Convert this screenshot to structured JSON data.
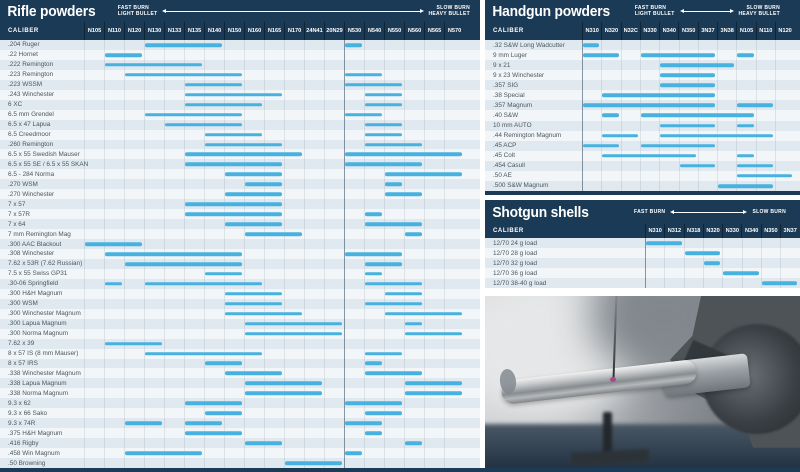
{
  "colors": {
    "navy": "#1b3a55",
    "bar": "#47b1e0",
    "row_light": "#f2f6f8",
    "row_dark": "#e0e9ef"
  },
  "chart_data": [
    {
      "type": "bar",
      "subtype": "horizontal-range",
      "title": "Rifle powders",
      "caliber_header": "CALIBER",
      "legend": {
        "fast_line1": "FAST BURN",
        "fast_line2": "LIGHT BULLET",
        "slow_line1": "SLOW BURN",
        "slow_line2": "HEAVY BULLET"
      },
      "columns": [
        "N105",
        "N110",
        "N120",
        "N130",
        "N133",
        "N135",
        "N140",
        "N150",
        "N160",
        "N165",
        "N170",
        "24N41",
        "20N29",
        "N530",
        "N540",
        "N550",
        "N560",
        "N565",
        "N570"
      ],
      "dividers": [
        13
      ],
      "rows": [
        {
          "label": ".204 Ruger",
          "ranges": [
            [
              "N130",
              "N140"
            ],
            [
              "N530",
              "N530"
            ]
          ]
        },
        {
          "label": ".22 Hornet",
          "ranges": [
            [
              "N110",
              "N120"
            ]
          ]
        },
        {
          "label": ".222 Remington",
          "ranges": [
            [
              "N110",
              "N135"
            ]
          ]
        },
        {
          "label": ".223 Remington",
          "ranges": [
            [
              "N120",
              "N150"
            ],
            [
              "N530",
              "N540"
            ]
          ]
        },
        {
          "label": ".223 WSSM",
          "ranges": [
            [
              "N135",
              "N150"
            ],
            [
              "N530",
              "N550"
            ]
          ]
        },
        {
          "label": ".243 Winchester",
          "ranges": [
            [
              "N135",
              "N165"
            ],
            [
              "N540",
              "N550"
            ]
          ]
        },
        {
          "label": "6 XC",
          "ranges": [
            [
              "N135",
              "N160"
            ],
            [
              "N540",
              "N550"
            ]
          ]
        },
        {
          "label": "6.5 mm Grendel",
          "ranges": [
            [
              "N130",
              "N150"
            ],
            [
              "N530",
              "N540"
            ]
          ]
        },
        {
          "label": "6.5 x 47 Lapua",
          "ranges": [
            [
              "N133",
              "N150"
            ],
            [
              "N540",
              "N550"
            ]
          ]
        },
        {
          "label": "6.5 Creedmoor",
          "ranges": [
            [
              "N140",
              "N160"
            ],
            [
              "N540",
              "N550"
            ]
          ]
        },
        {
          "label": ".260 Remington",
          "ranges": [
            [
              "N140",
              "N165"
            ],
            [
              "N540",
              "N560"
            ]
          ]
        },
        {
          "label": "6.5 x 55 Swedish Mauser",
          "ranges": [
            [
              "N135",
              "N170"
            ],
            [
              "N530",
              "N570"
            ]
          ]
        },
        {
          "label": "6.5 x 55 SE / 6.5 x 55 SKAN",
          "ranges": [
            [
              "N135",
              "N165"
            ],
            [
              "N530",
              "N560"
            ]
          ]
        },
        {
          "label": "6.5 - 284 Norma",
          "ranges": [
            [
              "N150",
              "N165"
            ],
            [
              "N550",
              "N570"
            ]
          ]
        },
        {
          "label": ".270 WSM",
          "ranges": [
            [
              "N160",
              "N165"
            ],
            [
              "N550",
              "N550"
            ]
          ]
        },
        {
          "label": ".270 Winchester",
          "ranges": [
            [
              "N150",
              "N165"
            ],
            [
              "N550",
              "N560"
            ]
          ]
        },
        {
          "label": "7 x 57",
          "ranges": [
            [
              "N135",
              "N165"
            ]
          ]
        },
        {
          "label": "7 x 57R",
          "ranges": [
            [
              "N135",
              "N165"
            ],
            [
              "N540",
              "N540"
            ]
          ]
        },
        {
          "label": "7 x 64",
          "ranges": [
            [
              "N150",
              "N165"
            ],
            [
              "N540",
              "N560"
            ]
          ]
        },
        {
          "label": "7 mm Remington Mag",
          "ranges": [
            [
              "N160",
              "N170"
            ],
            [
              "N560",
              "N560"
            ]
          ]
        },
        {
          "label": ".300 AAC Blackout",
          "ranges": [
            [
              "N105",
              "N120"
            ]
          ]
        },
        {
          "label": ".308 Winchester",
          "ranges": [
            [
              "N110",
              "N150"
            ],
            [
              "N530",
              "N550"
            ]
          ]
        },
        {
          "label": "7.62 x 53R (7.62 Russian)",
          "ranges": [
            [
              "N120",
              "N150"
            ],
            [
              "N540",
              "N550"
            ]
          ]
        },
        {
          "label": "7.5 x 55 Swiss GP31",
          "ranges": [
            [
              "N140",
              "N150"
            ],
            [
              "N540",
              "N540"
            ]
          ]
        },
        {
          "label": ".30-06 Springfield",
          "ranges": [
            [
              "N110",
              "N110"
            ],
            [
              "N130",
              "N160"
            ],
            [
              "N540",
              "N560"
            ]
          ]
        },
        {
          "label": ".300 H&H Magnum",
          "ranges": [
            [
              "N150",
              "N165"
            ],
            [
              "N550",
              "N560"
            ]
          ]
        },
        {
          "label": ".300 WSM",
          "ranges": [
            [
              "N150",
              "N165"
            ],
            [
              "N540",
              "N560"
            ]
          ]
        },
        {
          "label": ".300 Winchester Magnum",
          "ranges": [
            [
              "N150",
              "N170"
            ],
            [
              "N550",
              "N570"
            ]
          ]
        },
        {
          "label": ".300 Lapua Magnum",
          "ranges": [
            [
              "N160",
              "20N29"
            ],
            [
              "N560",
              "N560"
            ]
          ]
        },
        {
          "label": ".300 Norma Magnum",
          "ranges": [
            [
              "N160",
              "20N29"
            ],
            [
              "N560",
              "N570"
            ]
          ]
        },
        {
          "label": "7.62 x 39",
          "ranges": [
            [
              "N110",
              "N130"
            ]
          ]
        },
        {
          "label": "8 x 57 IS (8 mm Mauser)",
          "ranges": [
            [
              "N130",
              "N160"
            ],
            [
              "N540",
              "N550"
            ]
          ]
        },
        {
          "label": "8 x 57 IRS",
          "ranges": [
            [
              "N140",
              "N150"
            ],
            [
              "N540",
              "N540"
            ]
          ]
        },
        {
          "label": ".338 Winchester Magnum",
          "ranges": [
            [
              "N150",
              "N165"
            ],
            [
              "N540",
              "N560"
            ]
          ]
        },
        {
          "label": ".338 Lapua Magnum",
          "ranges": [
            [
              "N160",
              "24N41"
            ],
            [
              "N560",
              "N570"
            ]
          ]
        },
        {
          "label": ".338 Norma Magnum",
          "ranges": [
            [
              "N160",
              "24N41"
            ],
            [
              "N560",
              "N570"
            ]
          ]
        },
        {
          "label": "9.3 x 62",
          "ranges": [
            [
              "N135",
              "N150"
            ],
            [
              "N530",
              "N550"
            ]
          ]
        },
        {
          "label": "9.3 x 66 Sako",
          "ranges": [
            [
              "N140",
              "N150"
            ],
            [
              "N540",
              "N550"
            ]
          ]
        },
        {
          "label": "9.3 x 74R",
          "ranges": [
            [
              "N120",
              "N130"
            ],
            [
              "N135",
              "N140"
            ],
            [
              "N530",
              "N540"
            ]
          ]
        },
        {
          "label": ".375 H&H Magnum",
          "ranges": [
            [
              "N135",
              "N150"
            ],
            [
              "N540",
              "N540"
            ]
          ]
        },
        {
          "label": ".416 Rigby",
          "ranges": [
            [
              "N160",
              "N165"
            ],
            [
              "N560",
              "N560"
            ]
          ]
        },
        {
          "label": ".458 Win Magnum",
          "ranges": [
            [
              "N120",
              "N135"
            ],
            [
              "N530",
              "N530"
            ]
          ]
        },
        {
          "label": ".50 Browning",
          "ranges": [
            [
              "N170",
              "20N29"
            ]
          ]
        }
      ]
    },
    {
      "type": "bar",
      "subtype": "horizontal-range",
      "title": "Handgun powders",
      "caliber_header": "CALIBER",
      "legend": {
        "fast_line1": "FAST BURN",
        "fast_line2": "LIGHT BULLET",
        "slow_line1": "SLOW BURN",
        "slow_line2": "HEAVY BULLET"
      },
      "columns": [
        "N310",
        "N320",
        "N32C",
        "N330",
        "N340",
        "N350",
        "3N37",
        "3N38",
        "N105",
        "N110",
        "N120"
      ],
      "dividers": [
        0
      ],
      "rows": [
        {
          "label": ".32 S&W Long Wadcutter",
          "ranges": [
            [
              "N310",
              "N310"
            ]
          ]
        },
        {
          "label": "9 mm Luger",
          "ranges": [
            [
              "N310",
              "N320"
            ],
            [
              "N330",
              "3N37"
            ],
            [
              "N105",
              "N105"
            ]
          ]
        },
        {
          "label": "9 x 21",
          "ranges": [
            [
              "N340",
              "3N38"
            ]
          ]
        },
        {
          "label": "9 x 23 Winchester",
          "ranges": [
            [
              "N340",
              "3N37"
            ]
          ]
        },
        {
          "label": ".357 SIG",
          "ranges": [
            [
              "N340",
              "3N37"
            ]
          ]
        },
        {
          "label": ".38 Special",
          "ranges": [
            [
              "N320",
              "3N37"
            ]
          ]
        },
        {
          "label": ".357 Magnum",
          "ranges": [
            [
              "N310",
              "3N37"
            ],
            [
              "N105",
              "N110"
            ]
          ]
        },
        {
          "label": ".40 S&W",
          "ranges": [
            [
              "N320",
              "N320"
            ],
            [
              "N330",
              "N105"
            ]
          ]
        },
        {
          "label": "10 mm AUTO",
          "ranges": [
            [
              "N340",
              "3N37"
            ],
            [
              "N105",
              "N105"
            ]
          ]
        },
        {
          "label": ".44 Remington Magnum",
          "ranges": [
            [
              "N320",
              "N32C"
            ],
            [
              "N340",
              "N110"
            ]
          ]
        },
        {
          "label": ".45 ACP",
          "ranges": [
            [
              "N310",
              "N320"
            ],
            [
              "N330",
              "3N37"
            ]
          ]
        },
        {
          "label": ".45 Colt",
          "ranges": [
            [
              "N320",
              "N350"
            ],
            [
              "N105",
              "N105"
            ]
          ]
        },
        {
          "label": ".454 Casull",
          "ranges": [
            [
              "N350",
              "3N37"
            ],
            [
              "N105",
              "N110"
            ]
          ]
        },
        {
          "label": ".50 AE",
          "ranges": [
            [
              "N105",
              "N120"
            ]
          ]
        },
        {
          "label": ".500 S&W Magnum",
          "ranges": [
            [
              "3N38",
              "N110"
            ]
          ]
        }
      ]
    },
    {
      "type": "bar",
      "subtype": "horizontal-range",
      "title": "Shotgun shells",
      "caliber_header": "CALIBER",
      "legend": {
        "fast_line1": "FAST BURN",
        "slow_line1": "SLOW BURN"
      },
      "columns": [
        "N310",
        "N312",
        "N318",
        "N320",
        "N330",
        "N340",
        "N350",
        "3N37"
      ],
      "dividers": [
        0
      ],
      "rows": [
        {
          "label": "12/70 24 g load",
          "ranges": [
            [
              "N310",
              "N312"
            ]
          ]
        },
        {
          "label": "12/70 28 g load",
          "ranges": [
            [
              "N318",
              "N320"
            ]
          ]
        },
        {
          "label": "12/70 32 g load",
          "ranges": [
            [
              "N320",
              "N320"
            ]
          ]
        },
        {
          "label": "12/70 36 g load",
          "ranges": [
            [
              "N330",
              "N340"
            ]
          ]
        },
        {
          "label": "12/70 38-40 g load",
          "ranges": [
            [
              "N350",
              "3N37"
            ]
          ]
        }
      ]
    }
  ]
}
